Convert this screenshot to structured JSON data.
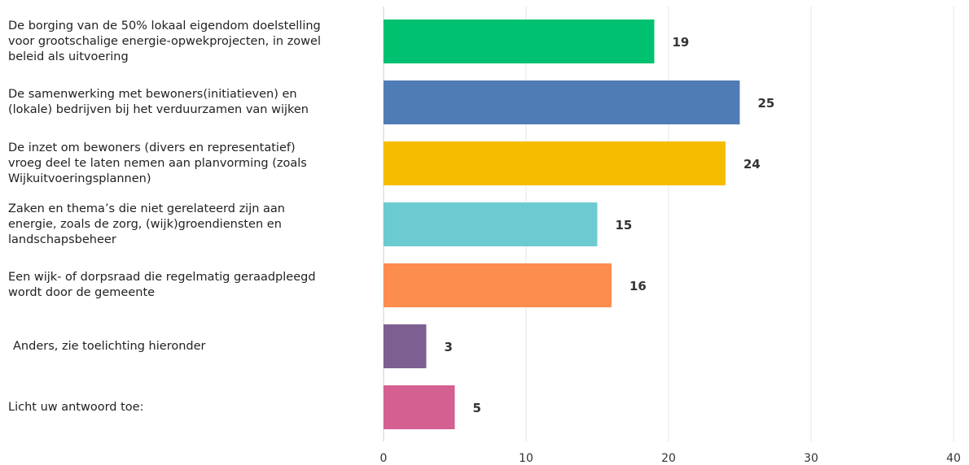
{
  "chart_data": {
    "type": "bar",
    "orientation": "horizontal",
    "categories": [
      "De borging van de 50% lokaal eigendom doelstelling voor grootschalige energie-opwekprojecten, in zowel beleid als uitvoering",
      "De samenwerking met bewoners(initiatieven) en (lokale) bedrijven bij het verduurzamen van wijken",
      "De inzet om bewoners (divers en representatief) vroeg deel te laten nemen aan planvorming (zoals Wijkuitvoeringsplannen)",
      "Zaken en thema’s die niet gerelateerd zijn aan energie, zoals de zorg, (wijk)groendiensten en landschapsbeheer",
      "Een wijk- of dorpsraad die regelmatig geraadpleegd wordt door de gemeente",
      "Anders, zie toelichting hieronder",
      "Licht uw antwoord toe:"
    ],
    "category_lines": [
      [
        "De borging van de 50% lokaal eigendom doelstelling",
        "voor grootschalige energie-opwekprojecten, in zowel",
        "beleid als uitvoering"
      ],
      [
        "De samenwerking met bewoners(initiatieven) en",
        "(lokale) bedrijven bij het verduurzamen van wijken"
      ],
      [
        "De inzet om bewoners (divers en representatief)",
        "vroeg deel te laten nemen aan planvorming (zoals",
        "Wijkuitvoeringsplannen)"
      ],
      [
        "Zaken en thema’s die niet gerelateerd zijn aan",
        "energie, zoals de zorg, (wijk)groendiensten en",
        "landschapsbeheer"
      ],
      [
        "Een wijk- of dorpsraad die regelmatig geraadpleegd",
        "wordt door de gemeente"
      ],
      [
        "Anders, zie toelichting hieronder"
      ],
      [
        "Licht uw antwoord toe:"
      ]
    ],
    "values": [
      19,
      25,
      24,
      15,
      16,
      3,
      5
    ],
    "data_labels": [
      "19",
      "25",
      "24",
      "15",
      "16",
      "3",
      "5"
    ],
    "colors": [
      "#00c170",
      "#507cb6",
      "#f6bd00",
      "#6ccbd0",
      "#fd8c4f",
      "#7e5f91",
      "#d46091"
    ],
    "xlim": [
      0,
      40
    ],
    "x_ticks": [
      0,
      10,
      20,
      30,
      40
    ],
    "x_tick_labels": [
      "0",
      "10",
      "20",
      "30",
      "40"
    ],
    "grid": true,
    "legend": "none",
    "title": "",
    "xlabel": "",
    "ylabel": ""
  }
}
